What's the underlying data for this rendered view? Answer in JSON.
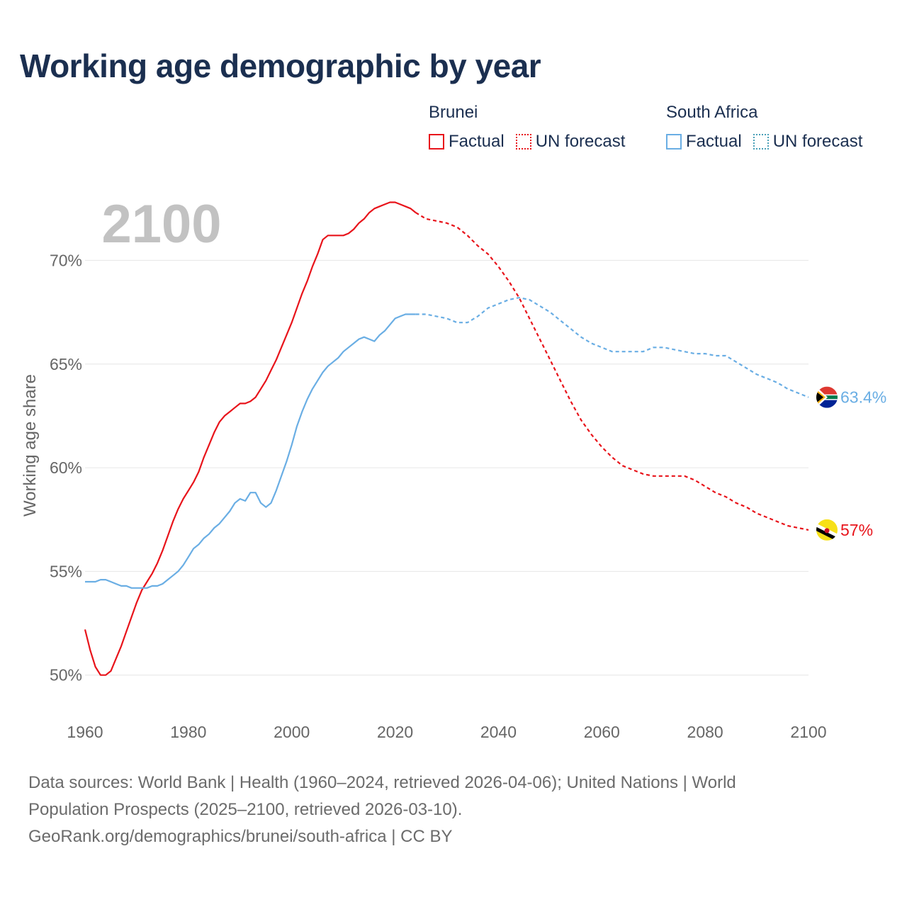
{
  "title": "Working age demographic by year",
  "legend": {
    "groups": [
      {
        "name": "Brunei",
        "color": "#e8141b",
        "items": [
          {
            "label": "Factual",
            "style": "solid"
          },
          {
            "label": "UN forecast",
            "style": "dotted"
          }
        ]
      },
      {
        "name": "South Africa",
        "color": "#6aaee4",
        "items": [
          {
            "label": "Factual",
            "style": "solid"
          },
          {
            "label": "UN forecast",
            "style": "dotted"
          }
        ]
      }
    ]
  },
  "chart_data": {
    "type": "line",
    "title": "Working age demographic by year",
    "year_watermark": "2100",
    "ylabel": "Working age share",
    "xlabel": "",
    "xlim": [
      1960,
      2100
    ],
    "ylim": [
      49,
      73.5
    ],
    "x_ticks": [
      1960,
      1980,
      2000,
      2020,
      2040,
      2060,
      2080,
      2100
    ],
    "x_tick_labels": [
      "1960",
      "1980",
      "2000",
      "2020",
      "2040",
      "2060",
      "2080",
      "2100"
    ],
    "y_ticks": [
      50,
      55,
      60,
      65,
      70
    ],
    "y_tick_labels": [
      "50%",
      "55%",
      "60%",
      "65%",
      "70%"
    ],
    "grid": true,
    "series": [
      {
        "name": "Brunei",
        "color": "#e8141b",
        "end_label": "57%",
        "flag_colors": [
          "#f7e017",
          "#000000",
          "#ffffff",
          "#cf1126"
        ],
        "factual": {
          "x": [
            1960,
            1961,
            1962,
            1963,
            1964,
            1965,
            1966,
            1967,
            1968,
            1969,
            1970,
            1971,
            1972,
            1973,
            1974,
            1975,
            1976,
            1977,
            1978,
            1979,
            1980,
            1981,
            1982,
            1983,
            1984,
            1985,
            1986,
            1987,
            1988,
            1989,
            1990,
            1991,
            1992,
            1993,
            1994,
            1995,
            1996,
            1997,
            1998,
            1999,
            2000,
            2001,
            2002,
            2003,
            2004,
            2005,
            2006,
            2007,
            2008,
            2009,
            2010,
            2011,
            2012,
            2013,
            2014,
            2015,
            2016,
            2017,
            2018,
            2019,
            2020,
            2021,
            2022,
            2023,
            2024
          ],
          "y": [
            52.2,
            51.2,
            50.4,
            50.0,
            50.0,
            50.2,
            50.8,
            51.4,
            52.1,
            52.8,
            53.5,
            54.1,
            54.5,
            54.9,
            55.4,
            56.0,
            56.7,
            57.4,
            58.0,
            58.5,
            58.9,
            59.3,
            59.8,
            60.5,
            61.1,
            61.7,
            62.2,
            62.5,
            62.7,
            62.9,
            63.1,
            63.1,
            63.2,
            63.4,
            63.8,
            64.2,
            64.7,
            65.2,
            65.8,
            66.4,
            67.0,
            67.7,
            68.4,
            69.0,
            69.7,
            70.3,
            71.0,
            71.2,
            71.2,
            71.2,
            71.2,
            71.3,
            71.5,
            71.8,
            72.0,
            72.3,
            72.5,
            72.6,
            72.7,
            72.8,
            72.8,
            72.7,
            72.6,
            72.5,
            72.3
          ]
        },
        "forecast": {
          "x": [
            2024,
            2026,
            2028,
            2030,
            2032,
            2034,
            2036,
            2038,
            2040,
            2042,
            2044,
            2046,
            2048,
            2050,
            2052,
            2054,
            2056,
            2058,
            2060,
            2062,
            2064,
            2066,
            2068,
            2070,
            2072,
            2074,
            2076,
            2078,
            2080,
            2082,
            2084,
            2086,
            2088,
            2090,
            2092,
            2094,
            2096,
            2098,
            2100
          ],
          "y": [
            72.3,
            72.0,
            71.9,
            71.8,
            71.6,
            71.2,
            70.7,
            70.3,
            69.7,
            69.0,
            68.2,
            67.2,
            66.2,
            65.2,
            64.2,
            63.2,
            62.3,
            61.6,
            61.0,
            60.5,
            60.1,
            59.9,
            59.7,
            59.6,
            59.6,
            59.6,
            59.6,
            59.4,
            59.1,
            58.8,
            58.6,
            58.3,
            58.1,
            57.8,
            57.6,
            57.4,
            57.2,
            57.1,
            57.0
          ]
        }
      },
      {
        "name": "South Africa",
        "color": "#6aaee4",
        "end_label": "63.4%",
        "flag_colors": [
          "#de3831",
          "#002395",
          "#007a4d",
          "#000000",
          "#ffb612",
          "#ffffff"
        ],
        "factual": {
          "x": [
            1960,
            1961,
            1962,
            1963,
            1964,
            1965,
            1966,
            1967,
            1968,
            1969,
            1970,
            1971,
            1972,
            1973,
            1974,
            1975,
            1976,
            1977,
            1978,
            1979,
            1980,
            1981,
            1982,
            1983,
            1984,
            1985,
            1986,
            1987,
            1988,
            1989,
            1990,
            1991,
            1992,
            1993,
            1994,
            1995,
            1996,
            1997,
            1998,
            1999,
            2000,
            2001,
            2002,
            2003,
            2004,
            2005,
            2006,
            2007,
            2008,
            2009,
            2010,
            2011,
            2012,
            2013,
            2014,
            2015,
            2016,
            2017,
            2018,
            2019,
            2020,
            2021,
            2022,
            2023,
            2024
          ],
          "y": [
            54.5,
            54.5,
            54.5,
            54.6,
            54.6,
            54.5,
            54.4,
            54.3,
            54.3,
            54.2,
            54.2,
            54.2,
            54.2,
            54.3,
            54.3,
            54.4,
            54.6,
            54.8,
            55.0,
            55.3,
            55.7,
            56.1,
            56.3,
            56.6,
            56.8,
            57.1,
            57.3,
            57.6,
            57.9,
            58.3,
            58.5,
            58.4,
            58.8,
            58.8,
            58.3,
            58.1,
            58.3,
            58.9,
            59.6,
            60.3,
            61.1,
            62.0,
            62.7,
            63.3,
            63.8,
            64.2,
            64.6,
            64.9,
            65.1,
            65.3,
            65.6,
            65.8,
            66.0,
            66.2,
            66.3,
            66.2,
            66.1,
            66.4,
            66.6,
            66.9,
            67.2,
            67.3,
            67.4,
            67.4,
            67.4
          ]
        },
        "forecast": {
          "x": [
            2024,
            2026,
            2028,
            2030,
            2032,
            2034,
            2036,
            2038,
            2040,
            2042,
            2044,
            2046,
            2048,
            2050,
            2052,
            2054,
            2056,
            2058,
            2060,
            2062,
            2064,
            2066,
            2068,
            2070,
            2072,
            2074,
            2076,
            2078,
            2080,
            2082,
            2084,
            2086,
            2088,
            2090,
            2092,
            2094,
            2096,
            2098,
            2100
          ],
          "y": [
            67.4,
            67.4,
            67.3,
            67.2,
            67.0,
            67.0,
            67.3,
            67.7,
            67.9,
            68.1,
            68.2,
            68.1,
            67.8,
            67.5,
            67.1,
            66.7,
            66.3,
            66.0,
            65.8,
            65.6,
            65.6,
            65.6,
            65.6,
            65.8,
            65.8,
            65.7,
            65.6,
            65.5,
            65.5,
            65.4,
            65.4,
            65.1,
            64.8,
            64.5,
            64.3,
            64.1,
            63.8,
            63.6,
            63.4
          ]
        }
      }
    ]
  },
  "footer": {
    "line1": "Data sources: World Bank | Health (1960–2024, retrieved 2026-04-06); United Nations | World",
    "line2": "Population Prospects (2025–2100, retrieved 2026-03-10).",
    "line3": "GeoRank.org/demographics/brunei/south-africa | CC BY"
  }
}
